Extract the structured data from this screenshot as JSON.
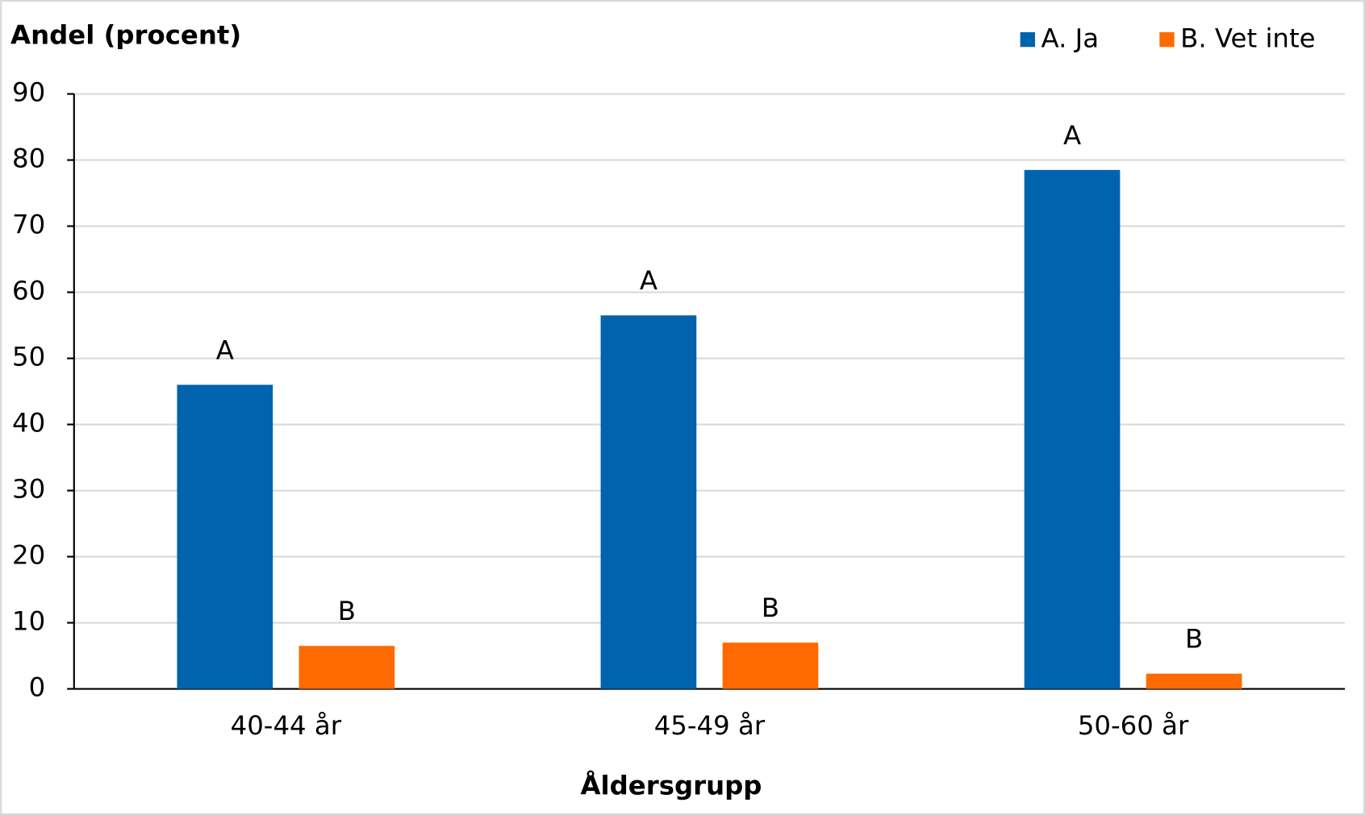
{
  "chart_data": {
    "type": "bar",
    "y_label": "Andel (procent)",
    "x_label": "Åldersgrupp",
    "categories": [
      "40-44 år",
      "45-49 år",
      "50-60 år"
    ],
    "series": [
      {
        "name": "A. Ja",
        "color": "#0063ad",
        "values": [
          46,
          56.5,
          78.5
        ],
        "point_labels": [
          "A",
          "A",
          "A"
        ]
      },
      {
        "name": "B. Vet inte",
        "color": "#ff6a00",
        "values": [
          6.5,
          7,
          2.3
        ],
        "point_labels": [
          "B",
          "B",
          "B"
        ]
      }
    ],
    "ylim": [
      0,
      90
    ],
    "yticks": [
      0,
      10,
      20,
      30,
      40,
      50,
      60,
      70,
      80,
      90
    ],
    "grid": true,
    "legend": "top-right"
  }
}
